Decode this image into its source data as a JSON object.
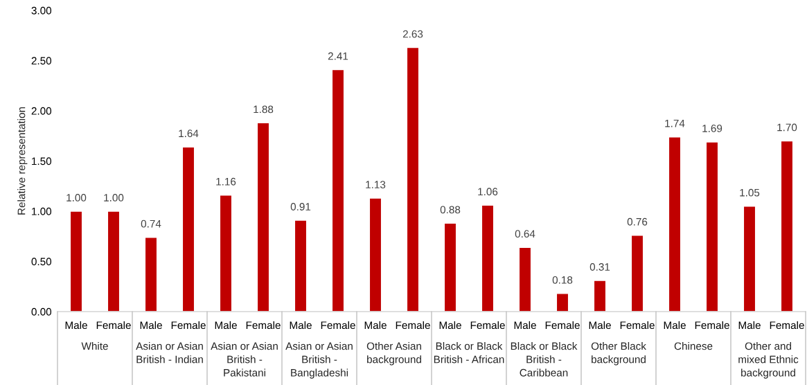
{
  "chart_data": {
    "type": "bar",
    "ylabel": "Relative representation",
    "categories": [
      "Male",
      "Female",
      "Male",
      "Female",
      "Male",
      "Female",
      "Male",
      "Female",
      "Male",
      "Female",
      "Male",
      "Female",
      "Male",
      "Female",
      "Male",
      "Female",
      "Male",
      "Female",
      "Male",
      "Female"
    ],
    "values": [
      1.0,
      1.0,
      0.74,
      1.64,
      1.16,
      1.88,
      0.91,
      2.41,
      1.13,
      2.63,
      0.88,
      1.06,
      0.64,
      0.18,
      0.31,
      0.76,
      1.74,
      1.69,
      1.05,
      1.7
    ],
    "value_labels": [
      "1.00",
      "1.00",
      "0.74",
      "1.64",
      "1.16",
      "1.88",
      "0.91",
      "2.41",
      "1.13",
      "2.63",
      "0.88",
      "1.06",
      "0.64",
      "0.18",
      "0.31",
      "0.76",
      "1.74",
      "1.69",
      "1.05",
      "1.70"
    ],
    "color": "#c00000",
    "ylim": [
      0,
      3
    ],
    "yticks": [
      {
        "value": 0,
        "label": "0.00"
      },
      {
        "value": 0.5,
        "label": "0.50"
      },
      {
        "value": 1,
        "label": "1.00"
      },
      {
        "value": 1.5,
        "label": "1.50"
      },
      {
        "value": 2,
        "label": "2.00"
      },
      {
        "value": 2.5,
        "label": "2.50"
      },
      {
        "value": 3,
        "label": "3.00"
      }
    ],
    "grid": false,
    "legend": false,
    "annotations": [
      "White",
      "Asian or Asian\nBritish - Indian",
      "Asian or Asian\nBritish -\nPakistani",
      "Asian or Asian\nBritish -\nBangladeshi",
      "Other Asian\nbackground",
      "Black or Black\nBritish - African",
      "Black or Black\nBritish -\nCaribbean",
      "Other Black\nbackground",
      "Chinese",
      "Other and\nmixed Ethnic\nbackground"
    ]
  }
}
